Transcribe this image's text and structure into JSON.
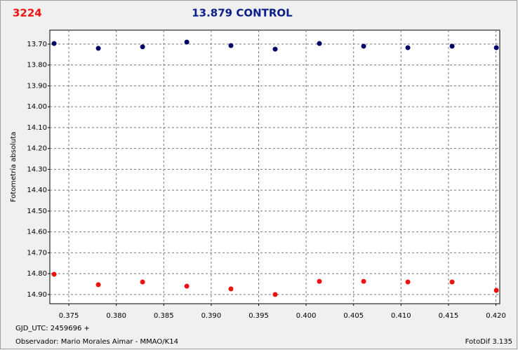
{
  "chart_data": {
    "type": "scatter",
    "tag": "3224",
    "title": "13.879 CONTROL",
    "y_label": "Fotometría absoluta",
    "footer_left_1": "GJD_UTC: 2459696 +",
    "footer_left_2": "Observador: Mario Morales Aimar - MMAO/K14",
    "footer_right": "FotoDif 3.135",
    "x": [
      0.37345,
      0.37811,
      0.38277,
      0.38743,
      0.39208,
      0.39674,
      0.4014,
      0.40606,
      0.41072,
      0.41538,
      0.42004
    ],
    "series": [
      {
        "color": "#000066",
        "values": [
          13.697,
          13.72,
          13.713,
          13.69,
          13.707,
          13.724,
          13.697,
          13.71,
          13.717,
          13.71,
          13.717
        ]
      },
      {
        "color": "#ee1111",
        "values": [
          14.803,
          14.853,
          14.84,
          14.86,
          14.873,
          14.9,
          14.837,
          14.837,
          14.84,
          14.84,
          14.88
        ]
      }
    ],
    "xlim": [
      0.373,
      0.4204
    ],
    "ylim": [
      13.633,
      14.944
    ],
    "y_inverted": true,
    "grid": true,
    "xticks": [
      0.375,
      {
        "value": 0.38,
        "label": "0.380"
      },
      0.385,
      {
        "value": 0.39,
        "label": "0.390"
      },
      0.395,
      {
        "value": 0.4,
        "label": "0.400"
      },
      0.405,
      {
        "value": 0.41,
        "label": "0.410"
      },
      0.415,
      {
        "value": 0.42,
        "label": "0.420"
      }
    ],
    "yticks": [
      {
        "value": 13.7,
        "label": "13.70"
      },
      {
        "value": 13.8,
        "label": "13.80"
      },
      {
        "value": 13.9,
        "label": "13.90"
      },
      {
        "value": 14.0,
        "label": "14.00"
      },
      {
        "value": 14.1,
        "label": "14.10"
      },
      {
        "value": 14.2,
        "label": "14.20"
      },
      {
        "value": 14.3,
        "label": "14.30"
      },
      {
        "value": 14.4,
        "label": "14.40"
      },
      {
        "value": 14.5,
        "label": "14.50"
      },
      {
        "value": 14.6,
        "label": "14.60"
      },
      {
        "value": 14.7,
        "label": "14.70"
      },
      {
        "value": 14.8,
        "label": "14.80"
      },
      {
        "value": 14.9,
        "label": "14.90"
      }
    ]
  }
}
